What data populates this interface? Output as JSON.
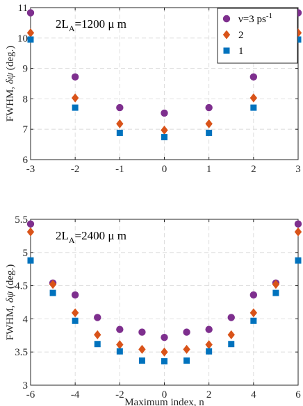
{
  "chart_data": [
    {
      "type": "scatter",
      "annotation": {
        "main": "2L",
        "sub": "A",
        "rest": "=1200 μ m"
      },
      "ylabel": {
        "prefix": "FWHM, ",
        "symbol": "δψ",
        "suffix": " (deg.)"
      },
      "xlim": [
        -3,
        3
      ],
      "ylim": [
        6,
        11
      ],
      "xticks": [
        -3,
        -2,
        -1,
        0,
        1,
        2,
        3
      ],
      "yticks": [
        6,
        7,
        8,
        9,
        10,
        11
      ],
      "grid": true,
      "legend_placement": "top-right",
      "x": [
        -3,
        -2,
        -1,
        0,
        1,
        2,
        3
      ],
      "series": [
        {
          "name": "ν=3 ps",
          "sup": "-1",
          "marker": "circle",
          "color": "#7e2f8e",
          "values": [
            10.83,
            8.72,
            7.71,
            7.53,
            7.71,
            8.72,
            10.83
          ]
        },
        {
          "name": "2",
          "marker": "diamond",
          "color": "#d95319",
          "values": [
            10.17,
            8.03,
            7.18,
            6.97,
            7.18,
            8.03,
            10.17
          ]
        },
        {
          "name": "1",
          "marker": "square",
          "color": "#0072bd",
          "values": [
            9.95,
            7.71,
            6.88,
            6.74,
            6.88,
            7.71,
            9.95
          ]
        }
      ]
    },
    {
      "type": "scatter",
      "annotation": {
        "main": "2L",
        "sub": "A",
        "rest": "=2400 μ m"
      },
      "ylabel": {
        "prefix": "FWHM, ",
        "symbol": "δψ",
        "suffix": " (deg.)"
      },
      "xlabel": "Maximum index, n",
      "xlim": [
        -6,
        6
      ],
      "ylim": [
        3,
        5.5
      ],
      "xticks": [
        -6,
        -4,
        -2,
        0,
        2,
        4,
        6
      ],
      "yticks": [
        3,
        3.5,
        4,
        4.5,
        5,
        5.5
      ],
      "grid": true,
      "x": [
        -6,
        -5,
        -4,
        -3,
        -2,
        -1,
        0,
        1,
        2,
        3,
        4,
        5,
        6
      ],
      "series": [
        {
          "name": "ν=3 ps",
          "marker": "circle",
          "color": "#7e2f8e",
          "values": [
            5.43,
            4.54,
            4.36,
            4.02,
            3.84,
            3.8,
            3.72,
            3.8,
            3.84,
            4.02,
            4.36,
            4.54,
            5.43
          ]
        },
        {
          "name": "2",
          "marker": "diamond",
          "color": "#d95319",
          "values": [
            5.31,
            4.52,
            4.09,
            3.76,
            3.61,
            3.54,
            3.5,
            3.54,
            3.61,
            3.76,
            4.09,
            4.52,
            5.31
          ]
        },
        {
          "name": "1",
          "marker": "square",
          "color": "#0072bd",
          "values": [
            4.88,
            4.39,
            3.97,
            3.62,
            3.51,
            3.37,
            3.36,
            3.37,
            3.51,
            3.62,
            3.97,
            4.39,
            4.88
          ]
        }
      ]
    }
  ]
}
